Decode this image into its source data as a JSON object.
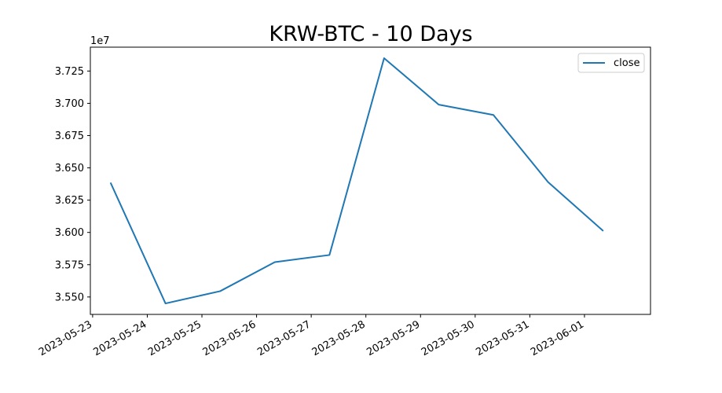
{
  "chart_data": {
    "type": "line",
    "title": "KRW-BTC - 10 Days",
    "xlabel": "",
    "ylabel": "",
    "y_offset_label": "1e7",
    "x": [
      "2023-05-23T08:00",
      "2023-05-24T08:00",
      "2023-05-25T08:00",
      "2023-05-26T08:00",
      "2023-05-27T08:00",
      "2023-05-28T08:00",
      "2023-05-29T08:00",
      "2023-05-30T08:00",
      "2023-05-31T08:00",
      "2023-06-01T08:00"
    ],
    "series": [
      {
        "name": "close",
        "color": "#1f77b4",
        "values": [
          36380000,
          35450000,
          35545000,
          35770000,
          35825000,
          37350000,
          36990000,
          36910000,
          36390000,
          36015000
        ]
      }
    ],
    "x_ticks": [
      "2023-05-23",
      "2023-05-24",
      "2023-05-25",
      "2023-05-26",
      "2023-05-27",
      "2023-05-28",
      "2023-05-29",
      "2023-05-30",
      "2023-05-31",
      "2023-06-01"
    ],
    "y_ticks": [
      35500000,
      35750000,
      36000000,
      36250000,
      36500000,
      36750000,
      37000000,
      37250000
    ],
    "y_tick_labels": [
      "3.550",
      "3.575",
      "3.600",
      "3.625",
      "3.650",
      "3.675",
      "3.700",
      "3.725"
    ],
    "xlim": [
      "2023-05-22T23:00",
      "2023-06-02T05:00"
    ],
    "ylim": [
      35365000,
      37435000
    ],
    "grid": false,
    "legend_position": "top-right"
  }
}
